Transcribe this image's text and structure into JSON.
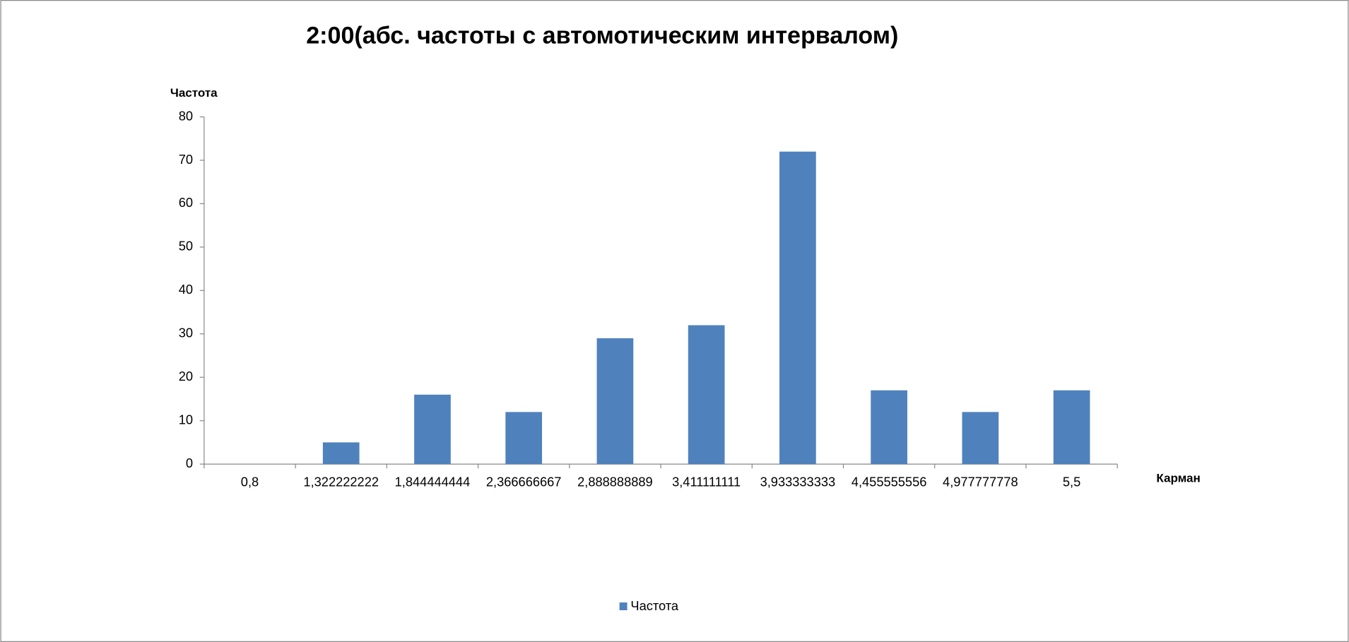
{
  "chart_data": {
    "type": "bar",
    "title": "2:00(абс. частоты с автомотическим интервалом)",
    "y_label": "Частота",
    "x_label": "Карман",
    "categories": [
      "0,8",
      "1,322222222",
      "1,844444444",
      "2,366666667",
      "2,888888889",
      "3,411111111",
      "3,933333333",
      "4,455555556",
      "4,977777778",
      "5,5"
    ],
    "series": [
      {
        "name": "Частота",
        "color": "#4f81bd",
        "values": [
          0,
          5,
          16,
          12,
          29,
          32,
          72,
          17,
          12,
          17
        ]
      }
    ],
    "ylim": [
      0,
      80
    ],
    "yticks": [
      0,
      10,
      20,
      30,
      40,
      50,
      60,
      70,
      80
    ],
    "grid": false,
    "legend": "bottom"
  }
}
